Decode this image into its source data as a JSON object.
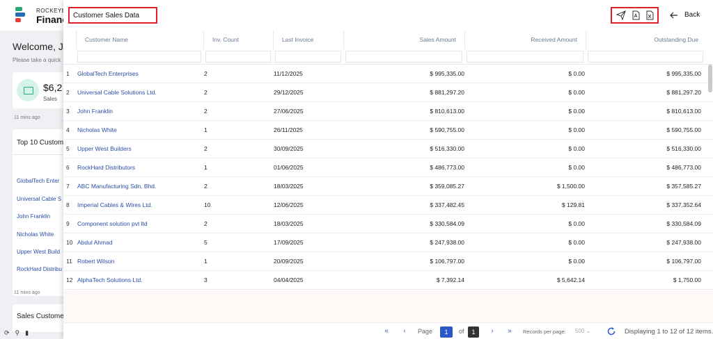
{
  "background": {
    "brand_top": "ROCKEYE",
    "brand": "Financ",
    "welcome": "Welcome, Je",
    "subtitle": "Please take a quick",
    "sales_amount": "$6,2",
    "sales_label": "Sales",
    "time_ago": "11 mins ago",
    "top10_title": "Top 10 Custome",
    "top10_items": [
      "GlobalTech Enter",
      "Universal Cable S",
      "John Franklin",
      "Nicholas White",
      "Upper West Build",
      "RockHard Distribu"
    ],
    "time_ago_2": "11 mins ago",
    "sales_customer_title": "Sales Custome"
  },
  "panel": {
    "title": "Customer Sales Data",
    "back_label": "Back",
    "actions": [
      "send-icon",
      "pdf-icon",
      "excel-icon"
    ]
  },
  "table": {
    "headers": {
      "customer_name": "Customer Name",
      "inv_count": "Inv. Count",
      "last_invoice": "Last Invoice",
      "sales_amount": "Sales Amount",
      "received_amount": "Received Amount",
      "outstanding_due": "Outstanding Due"
    },
    "rows": [
      {
        "n": "1",
        "name": "GlobalTech Enterprises",
        "inv": "2",
        "date": "11/12/2025",
        "sales": "$ 995,335.00",
        "recv": "$ 0.00",
        "due": "$ 995,335.00"
      },
      {
        "n": "2",
        "name": "Universal Cable Solutions Ltd.",
        "inv": "2",
        "date": "29/12/2025",
        "sales": "$ 881,297.20",
        "recv": "$ 0.00",
        "due": "$ 881,297.20"
      },
      {
        "n": "3",
        "name": "John Franklin",
        "inv": "2",
        "date": "27/06/2025",
        "sales": "$ 810,613.00",
        "recv": "$ 0.00",
        "due": "$ 810,613.00"
      },
      {
        "n": "4",
        "name": "Nicholas White",
        "inv": "1",
        "date": "26/11/2025",
        "sales": "$ 590,755.00",
        "recv": "$ 0.00",
        "due": "$ 590,755.00"
      },
      {
        "n": "5",
        "name": "Upper West Builders",
        "inv": "2",
        "date": "30/09/2025",
        "sales": "$ 516,330.00",
        "recv": "$ 0.00",
        "due": "$ 516,330.00"
      },
      {
        "n": "6",
        "name": "RockHard Distributors",
        "inv": "1",
        "date": "01/06/2025",
        "sales": "$ 486,773.00",
        "recv": "$ 0.00",
        "due": "$ 486,773.00"
      },
      {
        "n": "7",
        "name": "ABC Manufacturing Sdn. Bhd.",
        "inv": "2",
        "date": "18/03/2025",
        "sales": "$ 359,085.27",
        "recv": "$ 1,500.00",
        "due": "$ 357,585.27"
      },
      {
        "n": "8",
        "name": "Imperial Cables & Wires Ltd.",
        "inv": "10",
        "date": "12/06/2025",
        "sales": "$ 337,482.45",
        "recv": "$ 129.81",
        "due": "$ 337,352.64"
      },
      {
        "n": "9",
        "name": "Component solution pvt ltd",
        "inv": "2",
        "date": "18/03/2025",
        "sales": "$ 330,584.09",
        "recv": "$ 0.00",
        "due": "$ 330,584.09"
      },
      {
        "n": "10",
        "name": "Abdul Ahmad",
        "inv": "5",
        "date": "17/09/2025",
        "sales": "$ 247,938.00",
        "recv": "$ 0.00",
        "due": "$ 247,938.00"
      },
      {
        "n": "11",
        "name": "Robert Wilson",
        "inv": "1",
        "date": "20/09/2025",
        "sales": "$ 106,797.00",
        "recv": "$ 0.00",
        "due": "$ 106,797.00"
      },
      {
        "n": "12",
        "name": "AlphaTech Solutions Ltd.",
        "inv": "3",
        "date": "04/04/2025",
        "sales": "$ 7,392.14",
        "recv": "$ 5,642.14",
        "due": "$ 1,750.00"
      }
    ]
  },
  "pager": {
    "page_label": "Page",
    "current_page": "1",
    "of_label": "of",
    "total_pages": "1",
    "records_per_page_label": "Records per page:",
    "records_per_page": "500",
    "display_text": "Displaying 1 to 12 of 12 items."
  },
  "colors": {
    "accent": "#2b57c6",
    "link": "#2a4fa8",
    "highlight_box": "#e0202a"
  }
}
